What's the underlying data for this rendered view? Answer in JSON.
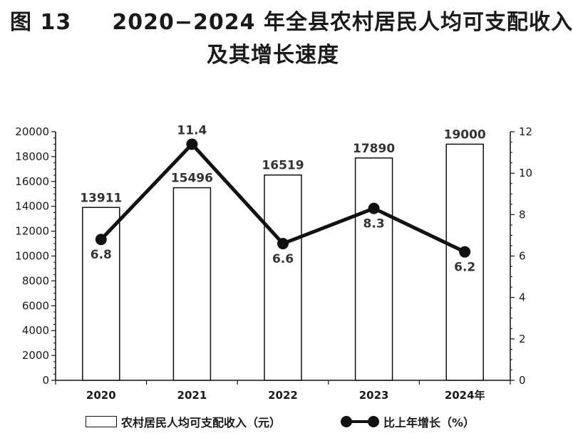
{
  "title_line1": "图 13     2020−2024 年全县农村居民人均可支配收入",
  "title_line2": "及其增长速度",
  "legend": {
    "bar_label": "农村居民人均可支配收入（元）",
    "line_label": "比上年增长（%）"
  },
  "chart_data": {
    "type": "bar+line",
    "categories": [
      "2020",
      "2021",
      "2022",
      "2023",
      "2024年"
    ],
    "series": [
      {
        "name": "农村居民人均可支配收入（元）",
        "type": "bar",
        "axis": "left",
        "values": [
          13911,
          15496,
          16519,
          17890,
          19000
        ]
      },
      {
        "name": "比上年增长（%）",
        "type": "line",
        "axis": "right",
        "values": [
          6.8,
          11.4,
          6.6,
          8.3,
          6.2
        ]
      }
    ],
    "y_left": {
      "min": 0,
      "max": 20000,
      "ticks": [
        0,
        2000,
        4000,
        6000,
        8000,
        10000,
        12000,
        14000,
        16000,
        18000,
        20000
      ]
    },
    "y_right": {
      "min": 0,
      "max": 12,
      "ticks": [
        0,
        2,
        4,
        6,
        8,
        10,
        12
      ]
    },
    "bar_labels": [
      "13911",
      "15496",
      "16519",
      "17890",
      "19000"
    ],
    "line_labels": [
      "6.8",
      "11.4",
      "6.6",
      "8.3",
      "6.2"
    ],
    "line_label_position": [
      "below",
      "above",
      "below",
      "below",
      "below"
    ],
    "bar_fill": "#ffffff",
    "line_color": "#111111",
    "legend_position": "bottom"
  }
}
